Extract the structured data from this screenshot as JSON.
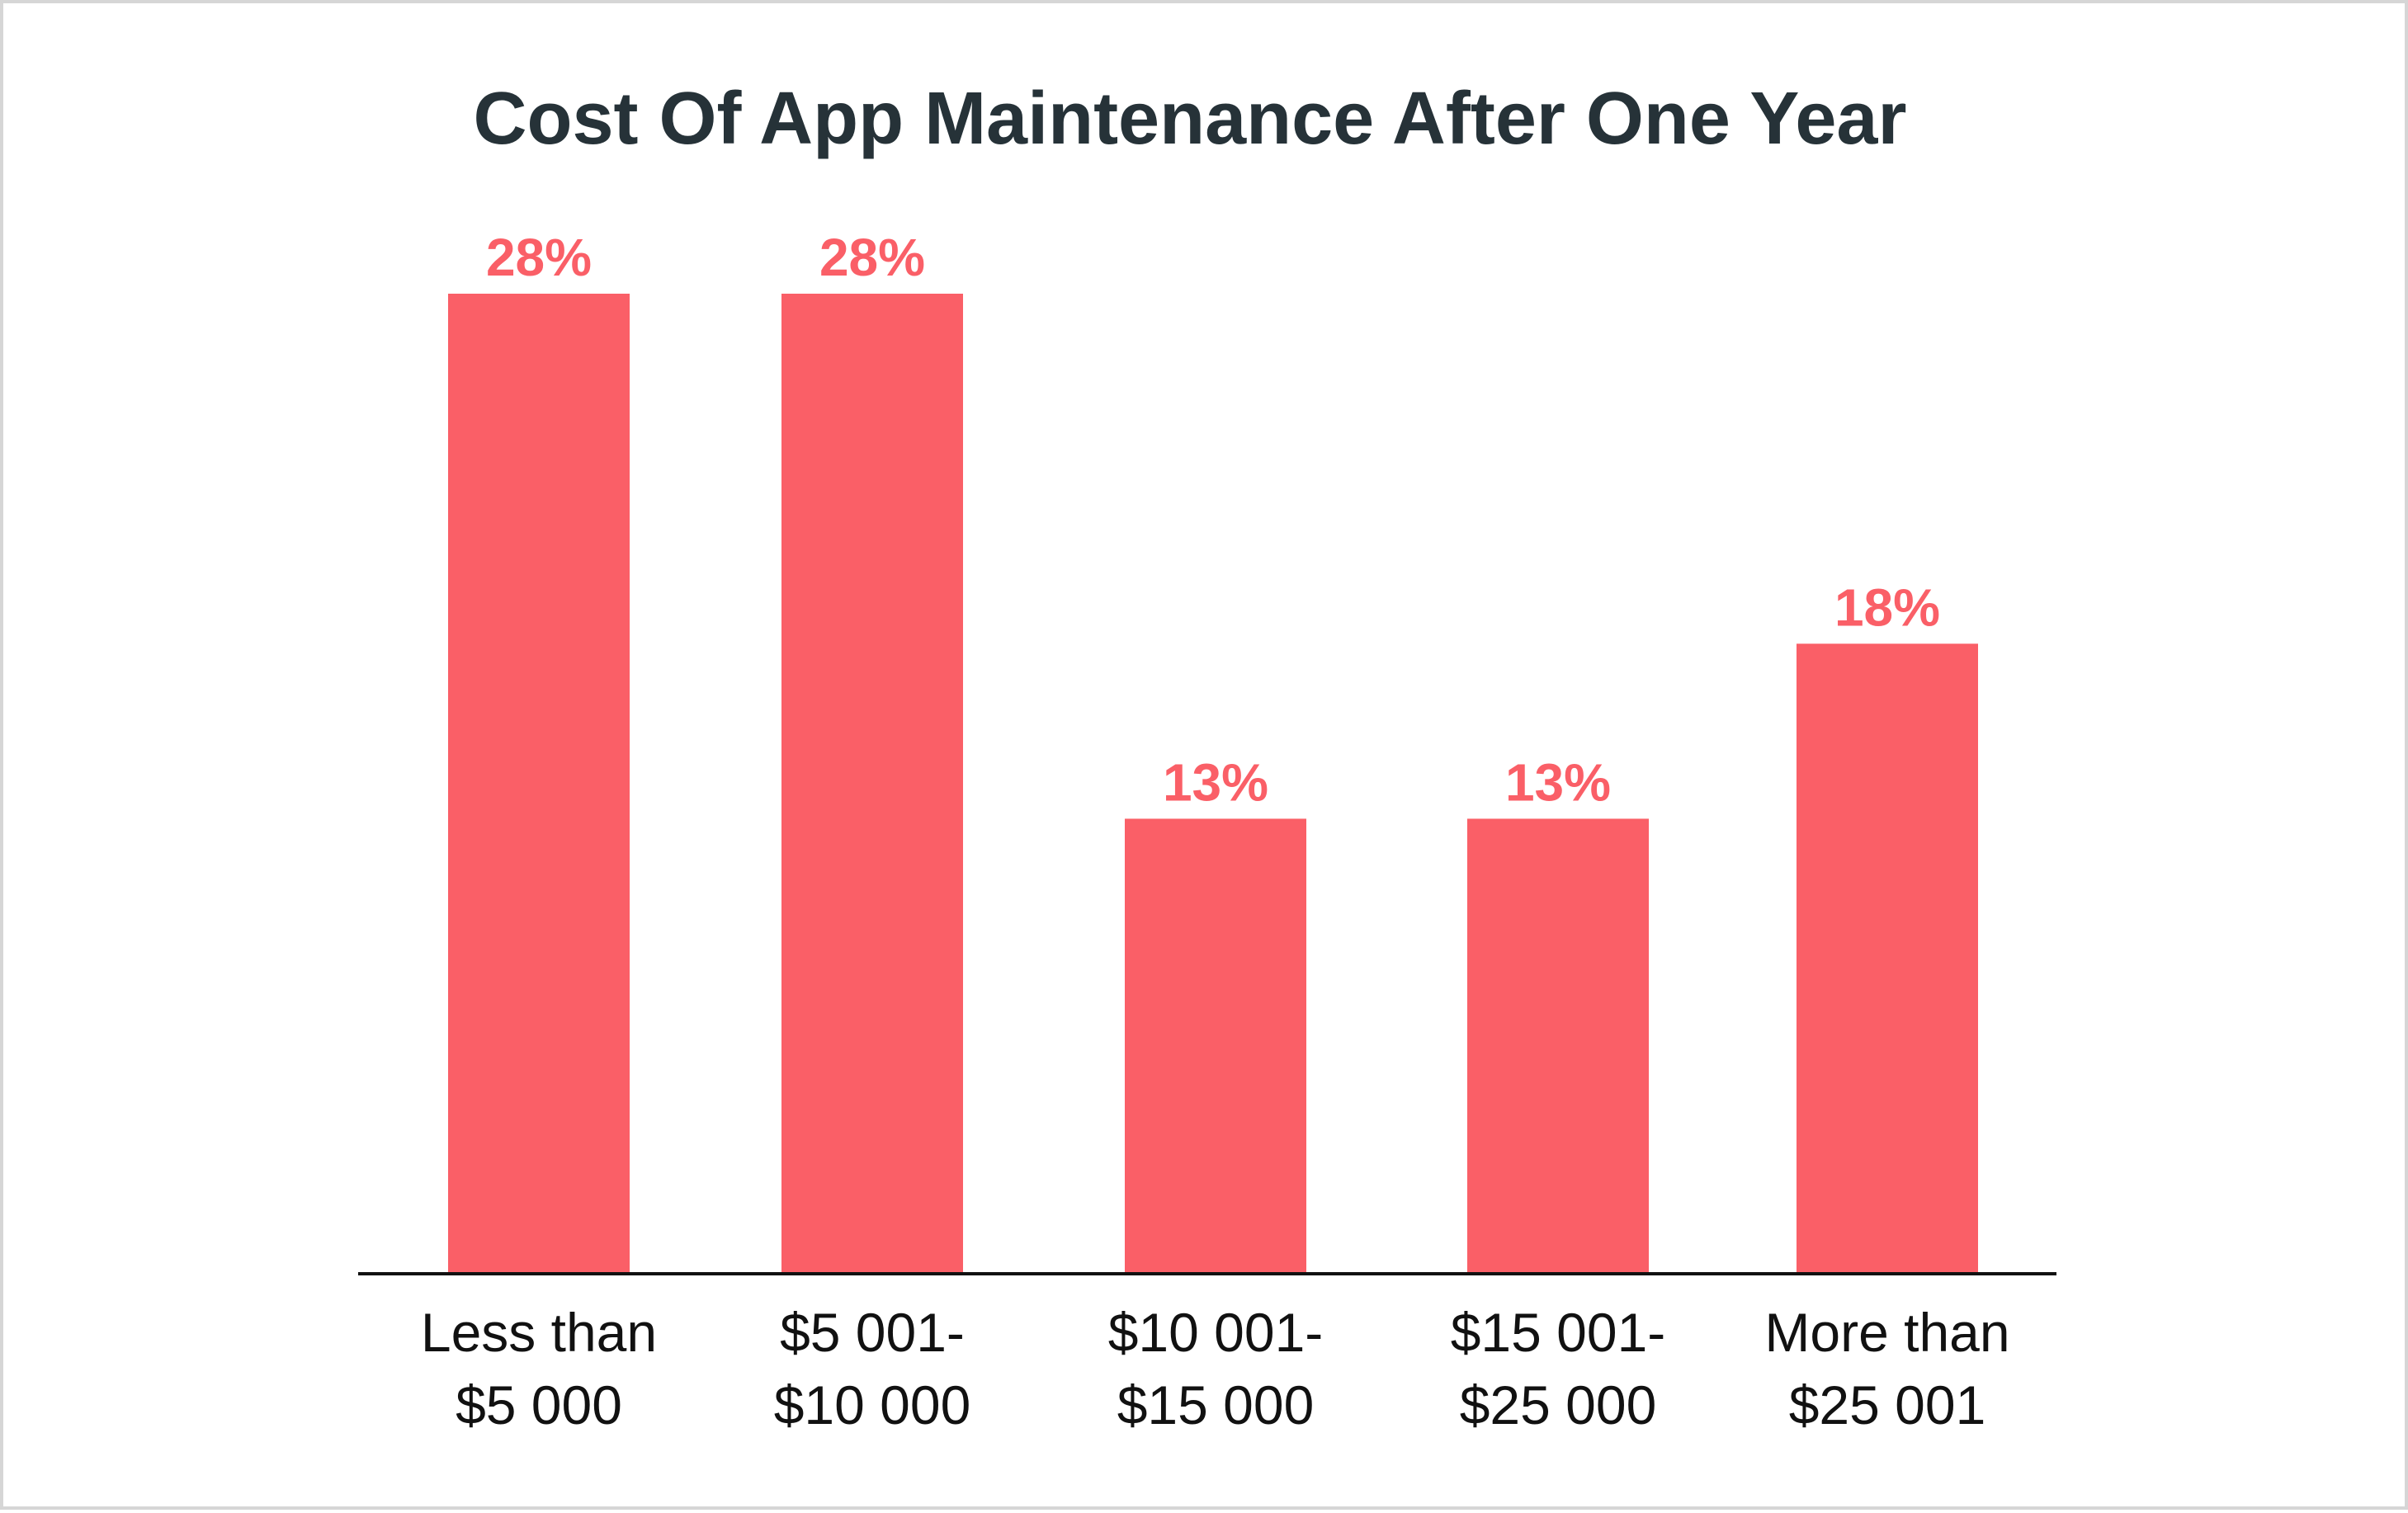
{
  "chart_data": {
    "type": "bar",
    "title": "Cost Of App Maintenance After One Year",
    "xlabel": "",
    "ylabel": "",
    "categories": [
      [
        "Less than",
        "$5 000"
      ],
      [
        "$5 001-",
        "$10 000"
      ],
      [
        "$10 001-",
        "$15 000"
      ],
      [
        "$15 001-",
        "$25 000"
      ],
      [
        "More than",
        "$25 001"
      ]
    ],
    "values": [
      28,
      28,
      13,
      13,
      18
    ],
    "value_labels": [
      "28%",
      "28%",
      "13%",
      "13%",
      "18%"
    ],
    "unit": "%",
    "ylim": [
      0,
      28
    ],
    "grid": false,
    "legend": "none"
  },
  "colors": {
    "bar": "#fa5f67",
    "value_label": "#fa5f67",
    "axis": "#111111",
    "title": "#263238"
  }
}
